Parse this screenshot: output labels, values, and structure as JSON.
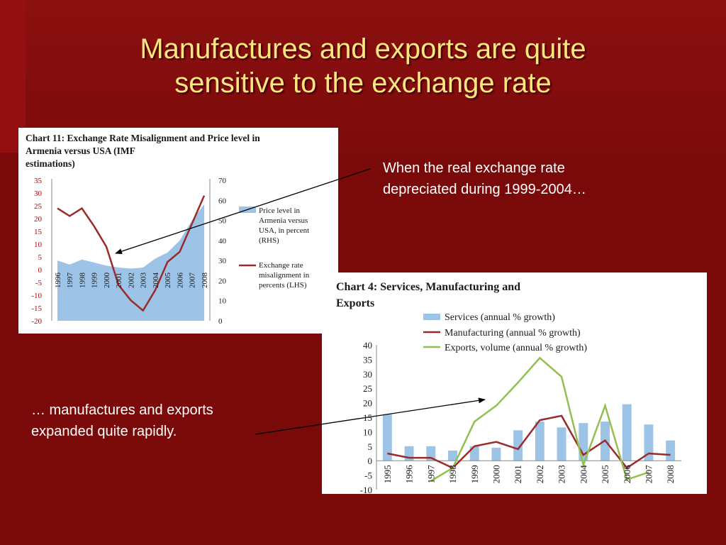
{
  "slide": {
    "title_line1": "Manufactures and exports are quite",
    "title_line2": "sensitive to the exchange rate",
    "caption1_line1": "When the real exchange rate",
    "caption1_line2": "depreciated during 1999-2004…",
    "caption2_line1": "… manufactures and exports",
    "caption2_line2": "expanded quite rapidly."
  },
  "colors": {
    "background": "#7a0a0a",
    "title": "#ffe680",
    "area": "#9dc3e6",
    "line_red": "#9b2b2b",
    "bar_blue": "#9dc3e6",
    "line_green": "#92c050"
  },
  "chart_data": [
    {
      "type": "area",
      "title_line1": "Chart 11: Exchange Rate Misalignment and Price level in",
      "title_line2": "Armenia versus USA (IMF",
      "title_line3": "estimations)",
      "categories": [
        "1996",
        "1997",
        "1998",
        "1999",
        "2000",
        "2001",
        "2002",
        "2003",
        "2004",
        "2005",
        "2006",
        "2007",
        "2008"
      ],
      "ylim_left": [
        -20,
        35
      ],
      "yticks_left": [
        -20,
        -15,
        -10,
        -5,
        0,
        5,
        10,
        15,
        20,
        25,
        30,
        35
      ],
      "ylim_right": [
        0,
        70
      ],
      "yticks_right": [
        0,
        10,
        20,
        30,
        40,
        50,
        60,
        70
      ],
      "series": [
        {
          "name_lines": [
            "Price level in",
            "Armenia versus",
            "USA, in percent",
            "(RHS)"
          ],
          "axis": "right",
          "type": "area",
          "values": [
            30,
            28,
            30.5,
            29,
            27.5,
            26.5,
            26,
            26.5,
            31,
            34,
            40,
            50,
            58
          ]
        },
        {
          "name_lines": [
            "Exchange rate",
            "misalignment in",
            "percents (LHS)"
          ],
          "axis": "left",
          "type": "line",
          "values": [
            24,
            21,
            24,
            17,
            9,
            -6,
            -12,
            -16,
            -8,
            3,
            7,
            18,
            29
          ]
        }
      ]
    },
    {
      "type": "bar",
      "title_line1": "Chart 4: Services, Manufacturing and",
      "title_line2": "Exports",
      "categories": [
        "1995",
        "1996",
        "1997",
        "1998",
        "1999",
        "2000",
        "2001",
        "2002",
        "2003",
        "2004",
        "2005",
        "2006",
        "2007",
        "2008"
      ],
      "ylim": [
        -10,
        40
      ],
      "yticks": [
        -10,
        -5,
        0,
        5,
        10,
        15,
        20,
        25,
        30,
        35,
        40
      ],
      "series": [
        {
          "name": "Services (annual % growth)",
          "type": "bar",
          "values": [
            16,
            5,
            5,
            3.5,
            5,
            4.5,
            10.5,
            13.5,
            11.5,
            13,
            13.5,
            19.5,
            12.5,
            7
          ]
        },
        {
          "name": "Manufacturing (annual % growth)",
          "type": "line",
          "values": [
            2.5,
            1,
            1,
            -2.5,
            5,
            6.5,
            4,
            14,
            15.5,
            2,
            7,
            -2.5,
            2.5,
            2
          ]
        },
        {
          "name": "Exports, volume (annual % growth)",
          "type": "line",
          "values": [
            null,
            null,
            -7,
            -2.5,
            13.5,
            19,
            27,
            35.5,
            29,
            -1.5,
            19,
            -6.5,
            -4,
            null
          ]
        }
      ]
    }
  ]
}
